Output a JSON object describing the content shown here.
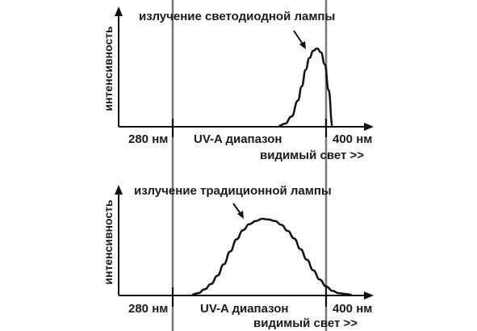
{
  "chart_data": [
    {
      "type": "line",
      "ylabel": "интенсивность",
      "annotation": "излучение светодиодной лампы",
      "tick_labels": {
        "left": "280 нм",
        "right": "400 нм"
      },
      "band_label": "UV-A диапазон",
      "beyond_label": "видимый свет >>",
      "xlim": [
        265,
        460
      ],
      "ylim": [
        0,
        1
      ],
      "series": [
        {
          "x": [
            363,
            368,
            373,
            378,
            381,
            384,
            387,
            390,
            393,
            396,
            399,
            402,
            405
          ],
          "values": [
            0.0,
            0.03,
            0.12,
            0.32,
            0.5,
            0.71,
            0.86,
            0.95,
            0.98,
            0.93,
            0.78,
            0.45,
            0.0
          ]
        }
      ]
    },
    {
      "type": "line",
      "ylabel": "интенсивность",
      "annotation": "излучение традиционной лампы",
      "tick_labels": {
        "left": "280 нм",
        "right": "400 нм"
      },
      "band_label": "UV-A диапазон",
      "beyond_label": "видимый свет >>",
      "xlim": [
        265,
        460
      ],
      "ylim": [
        0,
        1
      ],
      "series": [
        {
          "x": [
            295,
            300,
            305,
            310,
            315,
            320,
            325,
            330,
            335,
            340,
            345,
            350,
            355,
            360,
            365,
            370,
            375,
            380,
            385,
            390,
            395,
            400,
            405,
            410,
            415,
            420
          ],
          "values": [
            0.0,
            0.02,
            0.07,
            0.14,
            0.25,
            0.4,
            0.57,
            0.73,
            0.85,
            0.93,
            0.97,
            1.0,
            0.99,
            0.97,
            0.92,
            0.84,
            0.74,
            0.6,
            0.46,
            0.32,
            0.2,
            0.11,
            0.05,
            0.02,
            0.01,
            0.0
          ]
        }
      ]
    }
  ]
}
